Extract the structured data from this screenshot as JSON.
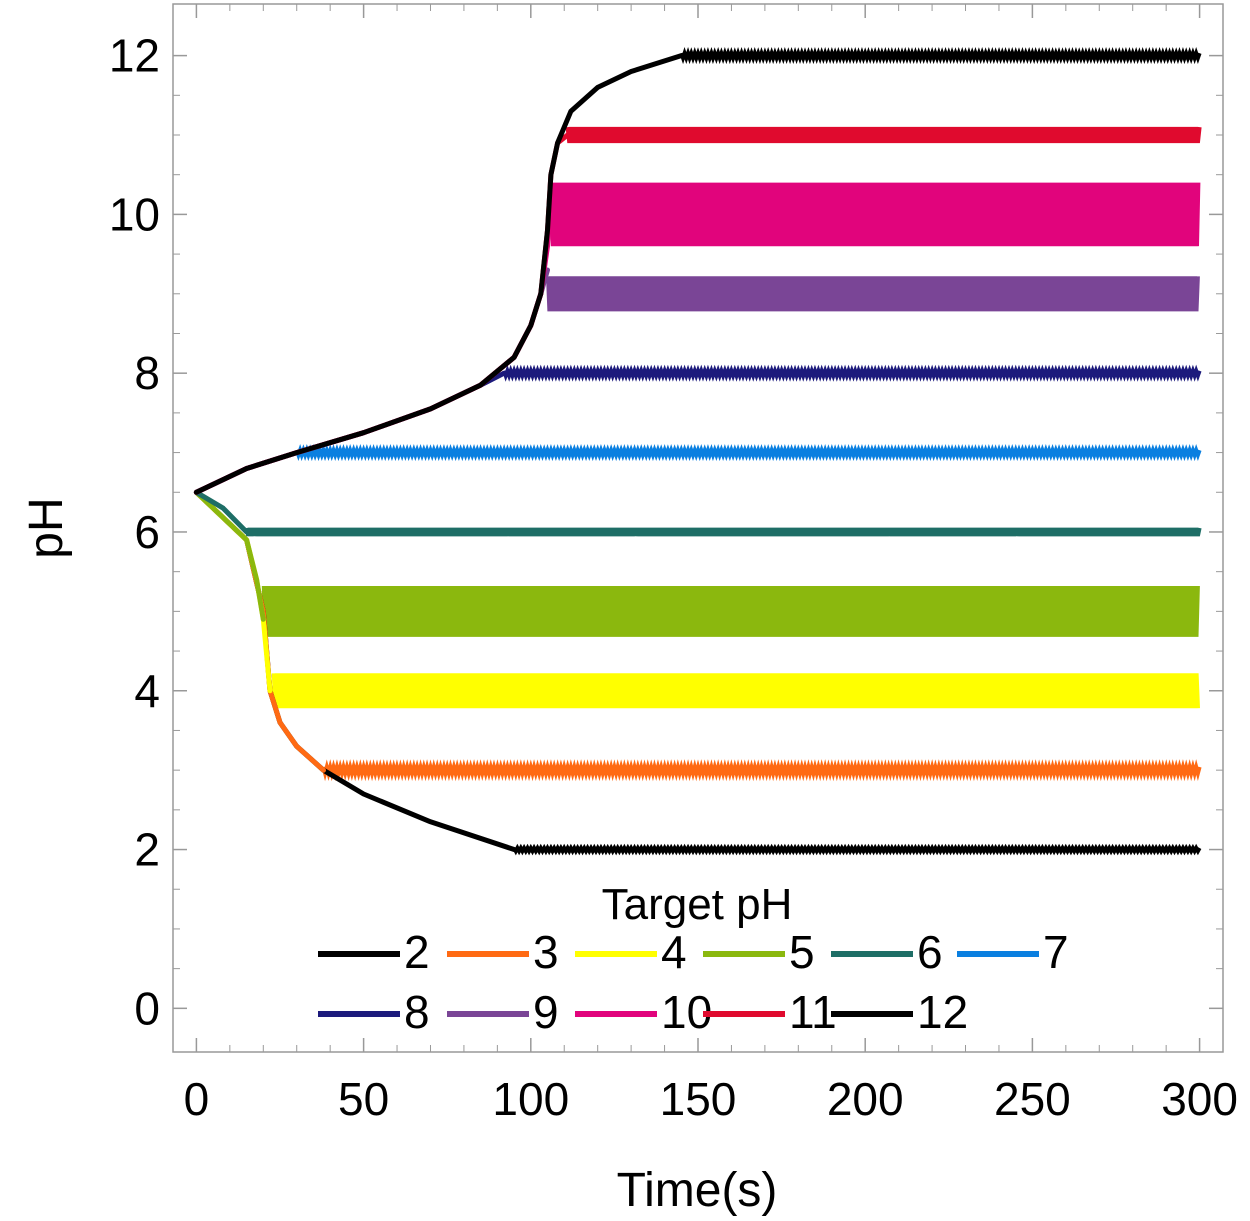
{
  "chart_data": {
    "type": "line",
    "title": "",
    "xlabel": "Time(s)",
    "ylabel": "pH",
    "xlim": [
      -7,
      307
    ],
    "ylim": [
      -0.55,
      12.65
    ],
    "xticks": [
      0,
      50,
      100,
      150,
      200,
      250,
      300
    ],
    "yticks": [
      0,
      2,
      4,
      6,
      8,
      10,
      12
    ],
    "grid": false,
    "legend_title": "Target pH",
    "legend_position": "bottom-center inside",
    "series": [
      {
        "name": "2",
        "color": "#000000",
        "settle_time": 95,
        "oscillation_amplitude": 0.02,
        "trajectory": [
          [
            0,
            6.5
          ],
          [
            15,
            5.9
          ],
          [
            20,
            5.0
          ],
          [
            22,
            4.0
          ],
          [
            25,
            3.6
          ],
          [
            30,
            3.3
          ],
          [
            38,
            3.0
          ],
          [
            50,
            2.7
          ],
          [
            70,
            2.35
          ],
          [
            95,
            2.0
          ]
        ]
      },
      {
        "name": "3",
        "color": "#ff6a13",
        "settle_time": 38,
        "oscillation_amplitude": 0.04,
        "trajectory": [
          [
            0,
            6.5
          ],
          [
            15,
            5.9
          ],
          [
            20,
            5.0
          ],
          [
            22,
            4.0
          ],
          [
            25,
            3.6
          ],
          [
            30,
            3.3
          ],
          [
            38,
            3.0
          ]
        ]
      },
      {
        "name": "4",
        "color": "#ffff00",
        "settle_time": 23,
        "oscillation_amplitude": 0.22,
        "trajectory": [
          [
            0,
            6.5
          ],
          [
            15,
            5.9
          ],
          [
            18,
            5.4
          ],
          [
            20,
            4.9
          ],
          [
            22,
            4.0
          ]
        ]
      },
      {
        "name": "5",
        "color": "#8bb80e",
        "settle_time": 20,
        "oscillation_amplitude": 0.32,
        "trajectory": [
          [
            0,
            6.5
          ],
          [
            15,
            5.9
          ],
          [
            18,
            5.4
          ],
          [
            20,
            4.9
          ]
        ]
      },
      {
        "name": "6",
        "color": "#1e6e66",
        "settle_time": 15,
        "oscillation_amplitude": 0.05,
        "trajectory": [
          [
            0,
            6.5
          ],
          [
            8,
            6.3
          ],
          [
            15,
            6.0
          ]
        ]
      },
      {
        "name": "7",
        "color": "#0a7fe0",
        "settle_time": 30,
        "oscillation_amplitude": 0.03,
        "trajectory": [
          [
            0,
            6.5
          ],
          [
            15,
            6.8
          ],
          [
            30,
            7.0
          ]
        ]
      },
      {
        "name": "8",
        "color": "#1c1a7c",
        "settle_time": 92,
        "oscillation_amplitude": 0.03,
        "trajectory": [
          [
            0,
            6.5
          ],
          [
            15,
            6.8
          ],
          [
            30,
            7.0
          ],
          [
            50,
            7.25
          ],
          [
            70,
            7.55
          ],
          [
            85,
            7.85
          ],
          [
            92,
            8.0
          ]
        ]
      },
      {
        "name": "9",
        "color": "#7a4596",
        "settle_time": 105,
        "oscillation_amplitude": 0.22,
        "trajectory": [
          [
            0,
            6.5
          ],
          [
            15,
            6.8
          ],
          [
            30,
            7.0
          ],
          [
            50,
            7.25
          ],
          [
            70,
            7.55
          ],
          [
            85,
            7.85
          ],
          [
            95,
            8.2
          ],
          [
            100,
            8.6
          ],
          [
            103,
            9.0
          ],
          [
            105,
            9.3
          ]
        ]
      },
      {
        "name": "10",
        "color": "#e1047c",
        "settle_time": 106,
        "oscillation_amplitude": 0.4,
        "trajectory": [
          [
            0,
            6.5
          ],
          [
            15,
            6.8
          ],
          [
            30,
            7.0
          ],
          [
            50,
            7.25
          ],
          [
            70,
            7.55
          ],
          [
            85,
            7.85
          ],
          [
            95,
            8.2
          ],
          [
            100,
            8.6
          ],
          [
            103,
            9.0
          ],
          [
            105,
            9.6
          ],
          [
            106,
            10.2
          ]
        ]
      },
      {
        "name": "11",
        "color": "#e00a2e",
        "settle_time": 111,
        "oscillation_amplitude": 0.1,
        "trajectory": [
          [
            0,
            6.5
          ],
          [
            15,
            6.8
          ],
          [
            30,
            7.0
          ],
          [
            50,
            7.25
          ],
          [
            70,
            7.55
          ],
          [
            85,
            7.85
          ],
          [
            95,
            8.2
          ],
          [
            100,
            8.6
          ],
          [
            103,
            9.0
          ],
          [
            105,
            9.8
          ],
          [
            106,
            10.5
          ],
          [
            108,
            10.9
          ],
          [
            111,
            11.0
          ]
        ]
      },
      {
        "name": "12",
        "color": "#000000",
        "settle_time": 145,
        "oscillation_amplitude": 0.03,
        "trajectory": [
          [
            0,
            6.5
          ],
          [
            15,
            6.8
          ],
          [
            30,
            7.0
          ],
          [
            50,
            7.25
          ],
          [
            70,
            7.55
          ],
          [
            85,
            7.85
          ],
          [
            95,
            8.2
          ],
          [
            100,
            8.6
          ],
          [
            103,
            9.0
          ],
          [
            105,
            9.8
          ],
          [
            106,
            10.5
          ],
          [
            108,
            10.9
          ],
          [
            112,
            11.3
          ],
          [
            120,
            11.6
          ],
          [
            130,
            11.8
          ],
          [
            145,
            12.0
          ]
        ]
      }
    ]
  }
}
